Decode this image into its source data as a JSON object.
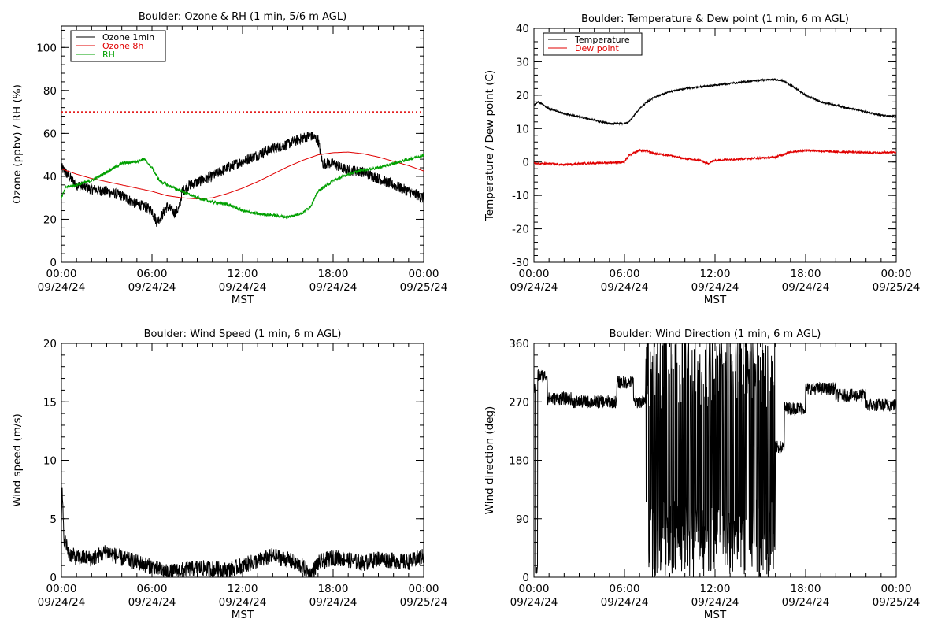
{
  "chart_data": [
    {
      "type": "line",
      "title": "Boulder: Ozone & RH (1 min, 5/6 m AGL)",
      "ylabel": "Ozone (ppbv) / RH (%)",
      "xlabel": "MST",
      "xlim": [
        "09/24/24 00:00",
        "09/25/24 00:00"
      ],
      "x_ticks": [
        [
          "00:00",
          "09/24/24"
        ],
        [
          "06:00",
          "09/24/24"
        ],
        [
          "12:00",
          "09/24/24"
        ],
        [
          "18:00",
          "09/24/24"
        ],
        [
          "00:00",
          "09/25/24"
        ]
      ],
      "ylim": [
        0,
        110
      ],
      "y_ticks": [
        0,
        20,
        40,
        60,
        80,
        100
      ],
      "legend_position": "top-left",
      "reference_line": {
        "y": 70,
        "color": "#e00000",
        "style": "dotted"
      },
      "series": [
        {
          "name": "Ozone 1min",
          "color": "#000000",
          "noise": 2.5,
          "points": [
            [
              0,
              44
            ],
            [
              0.5,
              40
            ],
            [
              1,
              36
            ],
            [
              2,
              34
            ],
            [
              3,
              33
            ],
            [
              4,
              31
            ],
            [
              5,
              27
            ],
            [
              5.5,
              26
            ],
            [
              6,
              24
            ],
            [
              6.3,
              19
            ],
            [
              6.6,
              21
            ],
            [
              7,
              26
            ],
            [
              7.5,
              23
            ],
            [
              7.8,
              25
            ],
            [
              8,
              33
            ],
            [
              8.5,
              36
            ],
            [
              10,
              40
            ],
            [
              11,
              44
            ],
            [
              12,
              47
            ],
            [
              13,
              50
            ],
            [
              14,
              53
            ],
            [
              15,
              55
            ],
            [
              16,
              58
            ],
            [
              16.5,
              59
            ],
            [
              17,
              57
            ],
            [
              17.3,
              46
            ],
            [
              18,
              46
            ],
            [
              18.5,
              44
            ],
            [
              19,
              43
            ],
            [
              20,
              42
            ],
            [
              21,
              39
            ],
            [
              22,
              36
            ],
            [
              23,
              33
            ],
            [
              24,
              30
            ]
          ]
        },
        {
          "name": "Ozone 8h",
          "color": "#e00000",
          "noise": 0,
          "points": [
            [
              0,
              43.5
            ],
            [
              1,
              41
            ],
            [
              2,
              39
            ],
            [
              3,
              37.5
            ],
            [
              4,
              36
            ],
            [
              5,
              34.5
            ],
            [
              6,
              33
            ],
            [
              7,
              31
            ],
            [
              8,
              30
            ],
            [
              9,
              29.5
            ],
            [
              10,
              30
            ],
            [
              11,
              32
            ],
            [
              12,
              34.5
            ],
            [
              13,
              37.5
            ],
            [
              14,
              41
            ],
            [
              15,
              44.5
            ],
            [
              16,
              47.5
            ],
            [
              17,
              50
            ],
            [
              18,
              51
            ],
            [
              19,
              51.3
            ],
            [
              20,
              50.5
            ],
            [
              21,
              49
            ],
            [
              22,
              47
            ],
            [
              23,
              45
            ],
            [
              24,
              42.5
            ]
          ]
        },
        {
          "name": "RH",
          "color": "#00a000",
          "noise": 0.7,
          "points": [
            [
              0,
              30
            ],
            [
              0.3,
              35
            ],
            [
              1,
              36
            ],
            [
              2,
              38
            ],
            [
              3,
              42
            ],
            [
              4,
              46
            ],
            [
              5,
              47
            ],
            [
              5.5,
              48
            ],
            [
              6,
              44
            ],
            [
              6.5,
              38
            ],
            [
              7,
              36
            ],
            [
              8,
              33
            ],
            [
              9,
              30
            ],
            [
              10,
              28
            ],
            [
              11,
              27
            ],
            [
              12,
              24
            ],
            [
              13,
              22.5
            ],
            [
              14,
              22
            ],
            [
              15,
              21
            ],
            [
              16,
              23
            ],
            [
              16.5,
              26
            ],
            [
              17,
              33
            ],
            [
              18,
              38
            ],
            [
              19,
              41
            ],
            [
              20,
              43
            ],
            [
              21,
              44
            ],
            [
              22,
              46
            ],
            [
              23,
              48
            ],
            [
              23.5,
              49
            ],
            [
              24,
              50
            ]
          ]
        }
      ]
    },
    {
      "type": "line",
      "title": "Boulder: Temperature & Dew point (1 min, 6 m AGL)",
      "ylabel": "Temperature / Dew point (C)",
      "xlabel": "MST",
      "xlim": [
        "09/24/24 00:00",
        "09/25/24 00:00"
      ],
      "x_ticks": [
        [
          "00:00",
          "09/24/24"
        ],
        [
          "06:00",
          "09/24/24"
        ],
        [
          "12:00",
          "09/24/24"
        ],
        [
          "18:00",
          "09/24/24"
        ],
        [
          "00:00",
          "09/25/24"
        ]
      ],
      "ylim": [
        -30,
        40
      ],
      "y_ticks": [
        -30,
        -20,
        -10,
        0,
        10,
        20,
        30,
        40
      ],
      "legend_position": "top-left",
      "series": [
        {
          "name": "Temperature",
          "color": "#000000",
          "noise": 0.25,
          "points": [
            [
              0,
              17
            ],
            [
              0.3,
              18
            ],
            [
              1,
              16
            ],
            [
              2,
              14.5
            ],
            [
              3,
              13.5
            ],
            [
              4,
              12.5
            ],
            [
              5,
              11.5
            ],
            [
              6,
              11.5
            ],
            [
              6.3,
              12
            ],
            [
              7,
              16
            ],
            [
              7.5,
              18
            ],
            [
              8,
              19.5
            ],
            [
              9,
              21
            ],
            [
              10,
              22
            ],
            [
              11,
              22.5
            ],
            [
              12,
              23
            ],
            [
              13,
              23.5
            ],
            [
              14,
              24
            ],
            [
              15,
              24.5
            ],
            [
              16,
              24.7
            ],
            [
              16.5,
              24.3
            ],
            [
              17,
              23
            ],
            [
              18,
              20
            ],
            [
              19,
              18
            ],
            [
              20,
              17
            ],
            [
              21,
              16
            ],
            [
              22,
              15
            ],
            [
              23,
              14
            ],
            [
              24,
              13.5
            ]
          ]
        },
        {
          "name": "Dew point",
          "color": "#e00000",
          "noise": 0.3,
          "points": [
            [
              0,
              -0.5
            ],
            [
              1,
              -0.5
            ],
            [
              2,
              -0.8
            ],
            [
              3,
              -0.5
            ],
            [
              4,
              -0.3
            ],
            [
              5,
              -0.2
            ],
            [
              6,
              0
            ],
            [
              6.3,
              2
            ],
            [
              7,
              3.5
            ],
            [
              7.5,
              3.3
            ],
            [
              8,
              2.5
            ],
            [
              9,
              2
            ],
            [
              10,
              1
            ],
            [
              11,
              0.5
            ],
            [
              11.5,
              -0.5
            ],
            [
              12,
              0.5
            ],
            [
              13,
              0.8
            ],
            [
              14,
              1
            ],
            [
              15,
              1.2
            ],
            [
              16,
              1.5
            ],
            [
              17,
              3
            ],
            [
              18,
              3.5
            ],
            [
              19,
              3.3
            ],
            [
              20,
              3
            ],
            [
              21,
              3
            ],
            [
              22,
              2.8
            ],
            [
              23,
              2.8
            ],
            [
              24,
              3
            ]
          ]
        }
      ]
    },
    {
      "type": "line",
      "title": "Boulder: Wind Speed (1 min, 6 m AGL)",
      "ylabel": "Wind speed (m/s)",
      "xlabel": "MST",
      "xlim": [
        "09/24/24 00:00",
        "09/25/24 00:00"
      ],
      "x_ticks": [
        [
          "00:00",
          "09/24/24"
        ],
        [
          "06:00",
          "09/24/24"
        ],
        [
          "12:00",
          "09/24/24"
        ],
        [
          "18:00",
          "09/24/24"
        ],
        [
          "00:00",
          "09/25/24"
        ]
      ],
      "ylim": [
        0,
        20
      ],
      "y_ticks": [
        0,
        5,
        10,
        15,
        20
      ],
      "series": [
        {
          "name": "",
          "color": "#000000",
          "noise": 0.7,
          "clip_min": 0,
          "points": [
            [
              0,
              4
            ],
            [
              0.05,
              7.5
            ],
            [
              0.15,
              3.5
            ],
            [
              0.5,
              2
            ],
            [
              1,
              1.7
            ],
            [
              2,
              1.6
            ],
            [
              3,
              2.2
            ],
            [
              4,
              1.6
            ],
            [
              5,
              1.3
            ],
            [
              6,
              0.9
            ],
            [
              7,
              0.4
            ],
            [
              8,
              0.6
            ],
            [
              9,
              0.8
            ],
            [
              10,
              0.7
            ],
            [
              11,
              0.6
            ],
            [
              12,
              1
            ],
            [
              13,
              1.4
            ],
            [
              14,
              1.8
            ],
            [
              15,
              1.5
            ],
            [
              16,
              0.9
            ],
            [
              16.5,
              0.2
            ],
            [
              17,
              1.2
            ],
            [
              18,
              1.7
            ],
            [
              19,
              1.5
            ],
            [
              20,
              1.2
            ],
            [
              21,
              1.6
            ],
            [
              22,
              1.4
            ],
            [
              23,
              1.3
            ],
            [
              24,
              1.8
            ]
          ]
        }
      ]
    },
    {
      "type": "line",
      "title": "Boulder: Wind Direction (1 min, 6 m AGL)",
      "ylabel": "Wind direction (deg)",
      "xlabel": "MST",
      "xlim": [
        "09/24/24 00:00",
        "09/25/24 00:00"
      ],
      "x_ticks": [
        [
          "00:00",
          "09/24/24"
        ],
        [
          "06:00",
          "09/24/24"
        ],
        [
          "12:00",
          "09/24/24"
        ],
        [
          "18:00",
          "09/24/24"
        ],
        [
          "00:00",
          "09/25/24"
        ]
      ],
      "ylim": [
        0,
        360
      ],
      "y_ticks": [
        0,
        90,
        180,
        270,
        360
      ],
      "series": [
        {
          "name": "",
          "color": "#000000",
          "noise": 10,
          "clip_min": 0,
          "clip_max": 360,
          "segments": [
            {
              "from": 0,
              "to": 0.1,
              "level": 290
            },
            {
              "from": 0.1,
              "to": 0.25,
              "level": 10
            },
            {
              "from": 0.25,
              "to": 0.9,
              "level": 310
            },
            {
              "from": 0.9,
              "to": 2.5,
              "level": 275
            },
            {
              "from": 2.5,
              "to": 5.5,
              "level": 270
            },
            {
              "from": 5.5,
              "to": 6.6,
              "level": 300
            },
            {
              "from": 6.6,
              "to": 7.4,
              "level": 270
            },
            {
              "from": 7.4,
              "to": 16,
              "level": 60,
              "flip_high": 320
            },
            {
              "from": 16,
              "to": 16.6,
              "level": 200
            },
            {
              "from": 16.6,
              "to": 18,
              "level": 260
            },
            {
              "from": 18,
              "to": 20,
              "level": 290
            },
            {
              "from": 20,
              "to": 22,
              "level": 280
            },
            {
              "from": 22,
              "to": 24,
              "level": 265
            }
          ]
        }
      ]
    }
  ]
}
